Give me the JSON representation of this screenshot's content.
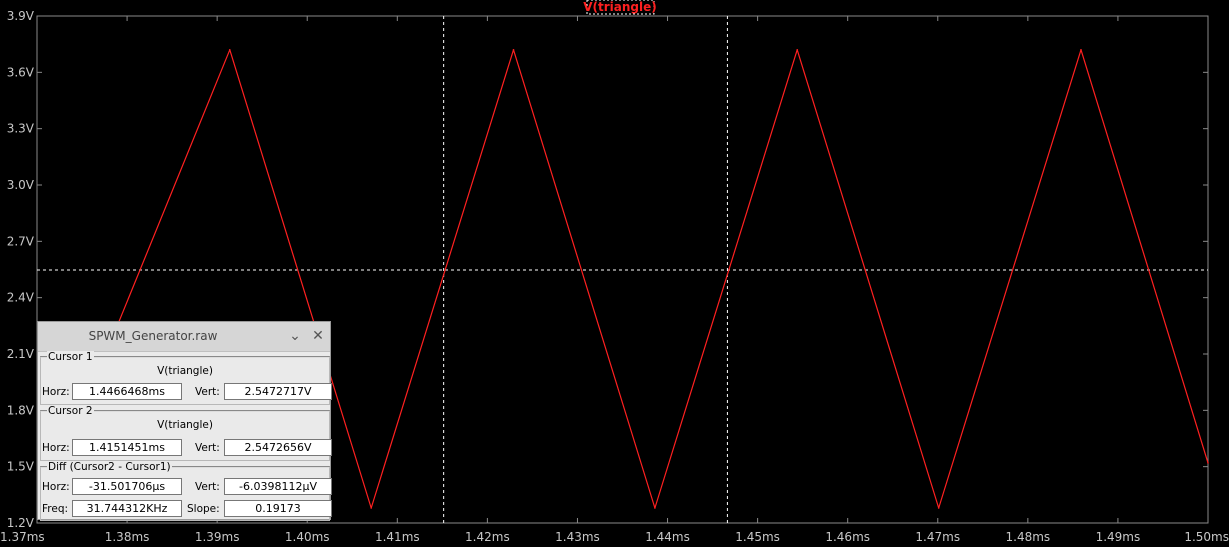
{
  "chart_data": {
    "type": "line",
    "title": "V(triangle)",
    "xlabel": "",
    "ylabel": "",
    "xlim": [
      1.37,
      1.5
    ],
    "ylim": [
      1.2,
      3.9
    ],
    "x_ticks": [
      "1.37ms",
      "1.38ms",
      "1.39ms",
      "1.40ms",
      "1.41ms",
      "1.42ms",
      "1.43ms",
      "1.44ms",
      "1.45ms",
      "1.46ms",
      "1.47ms",
      "1.48ms",
      "1.49ms",
      "1.50ms"
    ],
    "y_ticks": [
      "3.9V",
      "3.6V",
      "3.3V",
      "3.0V",
      "2.7V",
      "2.4V",
      "2.1V",
      "1.8V",
      "1.5V",
      "1.2V"
    ],
    "grid": false,
    "series": [
      {
        "name": "V(triangle)",
        "color": "#ff2020",
        "x": [
          1.375,
          1.3914,
          1.4071,
          1.4229,
          1.4386,
          1.4544,
          1.4701,
          1.4859,
          1.5
        ],
        "y": [
          1.79,
          3.72,
          1.28,
          3.72,
          1.28,
          3.72,
          1.28,
          3.72,
          1.52
        ]
      }
    ],
    "cursors": {
      "vertical_x": [
        1.4151451,
        1.4466468
      ],
      "horizontal_y": 2.5472717,
      "color": "#ffffff"
    }
  },
  "window": {
    "title": "SPWM_Generator.raw",
    "cursor1": {
      "group": "Cursor 1",
      "trace": "V(triangle)",
      "horz_label": "Horz:",
      "horz": "1.4466468ms",
      "vert_label": "Vert:",
      "vert": "2.5472717V"
    },
    "cursor2": {
      "group": "Cursor 2",
      "trace": "V(triangle)",
      "horz_label": "Horz:",
      "horz": "1.4151451ms",
      "vert_label": "Vert:",
      "vert": "2.5472656V"
    },
    "diff": {
      "group": "Diff (Cursor2 - Cursor1)",
      "horz_label": "Horz:",
      "horz": "-31.501706µs",
      "vert_label": "Vert:",
      "vert": "-6.0398112µV",
      "freq_label": "Freq:",
      "freq": "31.744312KHz",
      "slope_label": "Slope:",
      "slope": "0.19173"
    }
  }
}
